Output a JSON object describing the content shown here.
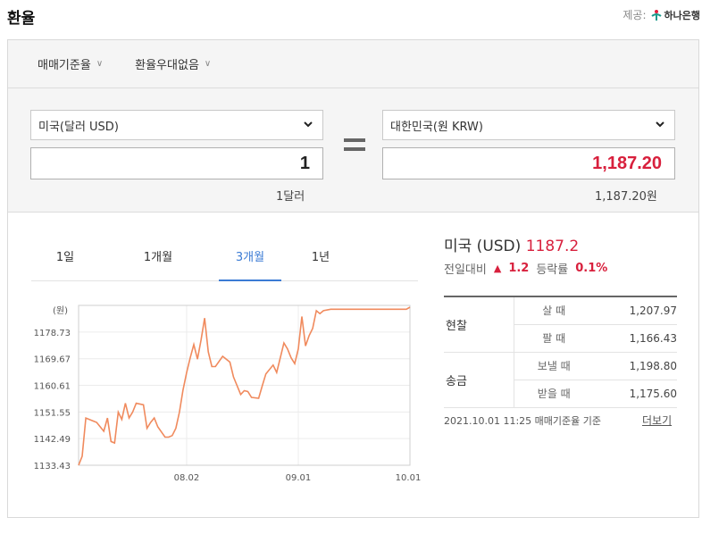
{
  "header": {
    "title": "환율",
    "provider_label": "제공:",
    "provider_name": "하나은행"
  },
  "filters": [
    {
      "label": "매매기준율"
    },
    {
      "label": "환율우대없음"
    }
  ],
  "converter": {
    "from_currency": "미국(달러 USD)",
    "from_amount": "1",
    "from_unit": "1달러",
    "to_currency": "대한민국(원 KRW)",
    "to_amount": "1,187.20",
    "to_unit": "1,187.20원"
  },
  "periods": {
    "tabs": [
      "1일",
      "1개월",
      "3개월",
      "1년"
    ],
    "active": "3개월"
  },
  "chart_data": {
    "type": "line",
    "ylabel": "(원)",
    "yticks": [
      "1178.73",
      "1169.67",
      "1160.61",
      "1151.55",
      "1142.49",
      "1133.43"
    ],
    "xticks": [
      "08.02",
      "09.01",
      "10.01"
    ],
    "ylim": [
      1133.43,
      1187.8
    ],
    "xlim": [
      0,
      92
    ],
    "grid": true,
    "color": "#f08a5d",
    "x": [
      0,
      1,
      2,
      4,
      5,
      7,
      8,
      9,
      10,
      11,
      12,
      13,
      14,
      15,
      16,
      18,
      19,
      20,
      21,
      22,
      24,
      25,
      26,
      27,
      28,
      29,
      30,
      31,
      32,
      33,
      34,
      35,
      36,
      37,
      38,
      40,
      42,
      43,
      45,
      46,
      47,
      48,
      50,
      51,
      52,
      54,
      55,
      57,
      58,
      59,
      60,
      61,
      62,
      63,
      64,
      65,
      66,
      67,
      68,
      70,
      71,
      72,
      73,
      74,
      75,
      76,
      77,
      78,
      80,
      82,
      83,
      84,
      86,
      87,
      88,
      89,
      90,
      91,
      92
    ],
    "values": [
      1133.4,
      1136.5,
      1149.5,
      1148.5,
      1148.0,
      1145.0,
      1149.5,
      1141.5,
      1141.0,
      1151.5,
      1149.0,
      1154.5,
      1149.5,
      1151.5,
      1154.5,
      1154.0,
      1146.0,
      1148.0,
      1149.5,
      1146.5,
      1143.0,
      1143.0,
      1143.5,
      1146.0,
      1151.5,
      1159.0,
      1165.0,
      1170.0,
      1174.5,
      1169.5,
      1176.0,
      1183.5,
      1172.0,
      1167.0,
      1167.0,
      1170.5,
      1168.5,
      1163.5,
      1157.5,
      1158.8,
      1158.5,
      1156.5,
      1156.2,
      1160.5,
      1164.5,
      1167.5,
      1165.0,
      1175.0,
      1173.0,
      1170.0,
      1168.0,
      1173.0,
      1184.0,
      1174.0,
      1177.5,
      1180.0,
      1186.0,
      1185.0,
      1186.0,
      1186.5,
      1186.5,
      1186.5,
      1186.5,
      1186.5,
      1186.5,
      1186.5,
      1186.5,
      1186.5,
      1186.5,
      1186.5,
      1186.5,
      1186.5,
      1186.5,
      1186.5,
      1186.5,
      1186.5,
      1186.5,
      1186.5,
      1187.2
    ]
  },
  "summary": {
    "country": "미국 (USD)",
    "rate": "1187.2",
    "change_label": "전일대비",
    "change_arrow": "▲",
    "change_value": "1.2",
    "rate_change_label": "등락률",
    "rate_change_value": "0.1%"
  },
  "rates": [
    {
      "group": "현찰",
      "label": "살 때",
      "value": "1,207.97"
    },
    {
      "group": "",
      "label": "팔 때",
      "value": "1,166.43"
    },
    {
      "group": "송금",
      "label": "보낼 때",
      "value": "1,198.80"
    },
    {
      "group": "",
      "label": "받을 때",
      "value": "1,175.60"
    }
  ],
  "footnote": "2021.10.01 11:25  매매기준율 기준",
  "more_link": "더보기"
}
